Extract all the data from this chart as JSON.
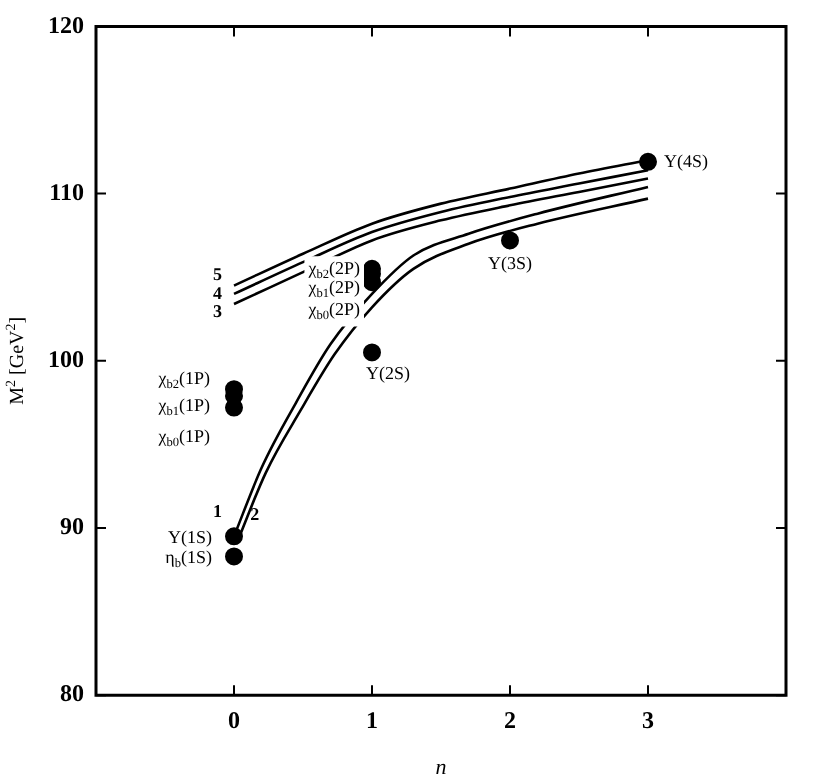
{
  "chart_data": {
    "type": "line",
    "xlabel": "n",
    "ylabel": "M$^{2}$ [GeV$^{2}$]",
    "xlim": [
      -1,
      4
    ],
    "ylim": [
      80,
      120
    ],
    "xticks": [
      0,
      1,
      2,
      3
    ],
    "yticks": [
      80,
      90,
      100,
      110,
      120
    ],
    "grid": false,
    "legend": false,
    "line_style": "solid",
    "marker": "none",
    "series": [
      {
        "name": "1",
        "color": "#000000",
        "x": [
          0,
          0.2,
          0.45,
          0.7,
          1,
          1.3,
          1.7,
          2.2,
          3
        ],
        "values": [
          89.5,
          93.6,
          97.5,
          101,
          104,
          106.3,
          107.6,
          108.8,
          110.4
        ]
      },
      {
        "name": "2",
        "color": "#000000",
        "x": [
          0.03,
          0.23,
          0.48,
          0.73,
          1,
          1.3,
          1.7,
          2.2,
          3
        ],
        "values": [
          89.3,
          93.3,
          97,
          100.4,
          103.2,
          105.5,
          107,
          108.2,
          109.7
        ]
      },
      {
        "name": "3",
        "color": "#000000",
        "x": [
          0,
          0.5,
          1,
          1.5,
          2,
          2.5,
          3
        ],
        "values": [
          103.4,
          105.3,
          107.2,
          108.4,
          109.3,
          110.1,
          110.9
        ]
      },
      {
        "name": "4",
        "color": "#000000",
        "x": [
          0,
          0.5,
          1,
          1.5,
          2,
          2.5,
          3
        ],
        "values": [
          104,
          105.9,
          107.7,
          108.9,
          109.8,
          110.6,
          111.4
        ]
      },
      {
        "name": "5",
        "color": "#000000",
        "x": [
          0,
          0.5,
          1,
          1.5,
          2,
          2.5,
          3
        ],
        "values": [
          104.5,
          106.4,
          108.2,
          109.4,
          110.3,
          111.2,
          112
        ]
      },
      {
        "type": "scatter",
        "marker": "circle",
        "color": "#000000",
        "x": [
          3,
          2,
          1,
          1,
          1,
          1,
          0,
          0,
          0,
          0,
          0
        ],
        "values": [
          111.9,
          107.2,
          100.5,
          105.5,
          105.2,
          104.7,
          98.3,
          97.9,
          97.2,
          89.5,
          88.3
        ]
      }
    ],
    "annotations": [
      {
        "text": "Υ(4S)",
        "x": 3,
        "y": 111.9
      },
      {
        "text": "Υ(3S)",
        "x": 2,
        "y": 107.2
      },
      {
        "text": "Υ(2S)",
        "x": 1,
        "y": 100.5
      },
      {
        "text": "χ$_{b2}$(2P)",
        "x": 1,
        "y": 105.5
      },
      {
        "text": "χ$_{b1}$(2P)",
        "x": 1,
        "y": 105.2
      },
      {
        "text": "χ$_{b0}$(2P)",
        "x": 1,
        "y": 104.7
      },
      {
        "text": "χ$_{b2}$(1P)",
        "x": 0,
        "y": 98.3
      },
      {
        "text": "χ$_{b1}$(1P)",
        "x": 0,
        "y": 97.9
      },
      {
        "text": "χ$_{b0}$(1P)",
        "x": 0,
        "y": 97.2
      },
      {
        "text": "Υ(1S)",
        "x": 0,
        "y": 89.5
      },
      {
        "text": "η$_{b}$(1S)",
        "x": 0,
        "y": 88.3
      }
    ]
  }
}
